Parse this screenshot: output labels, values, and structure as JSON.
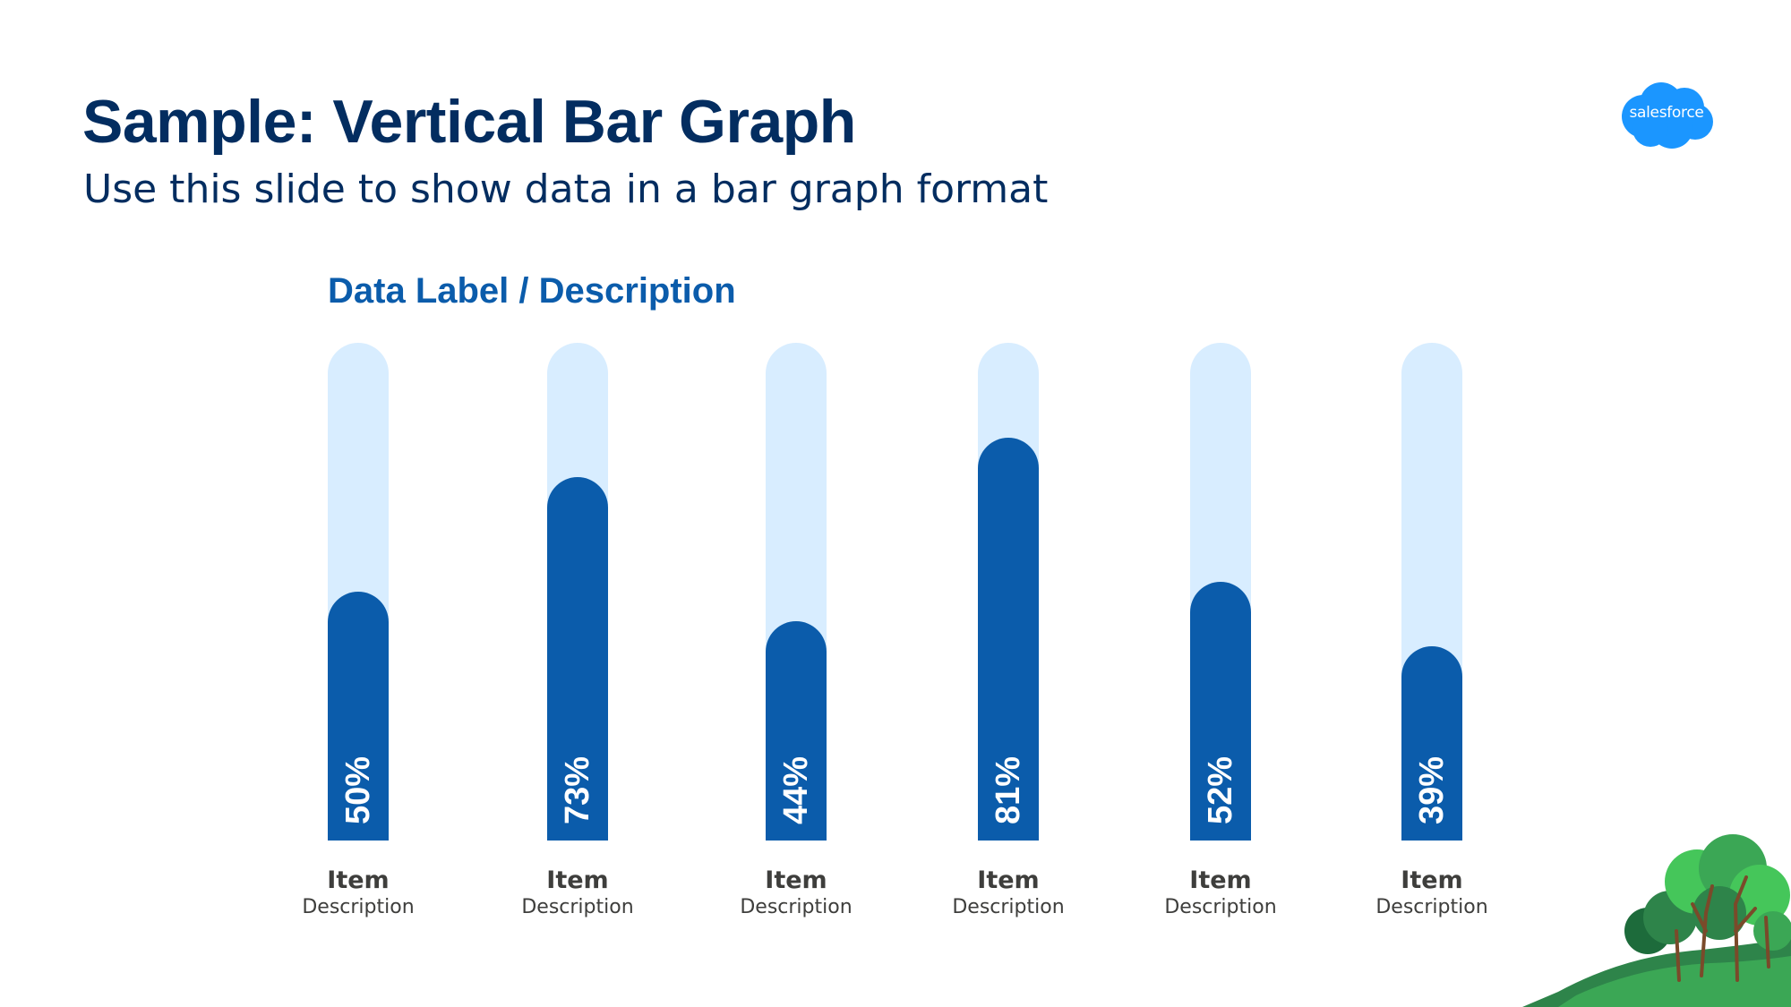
{
  "slide": {
    "title": "Sample: Vertical Bar Graph",
    "subtitle": "Use this slide to show data in a bar graph format",
    "logo_text": "salesforce"
  },
  "colors": {
    "title": "#032d60",
    "subtitle": "#032d60",
    "chart_label": "#0b5cab",
    "bar_fill": "#0b5cab",
    "bar_track": "#d8edff",
    "item_name": "#3e3e3c",
    "item_desc": "#3e3e3c",
    "logo": "#1b96ff"
  },
  "chart_data": {
    "type": "bar",
    "title": "Data Label / Description",
    "categories": [
      "Item",
      "Item",
      "Item",
      "Item",
      "Item",
      "Item"
    ],
    "descriptions": [
      "Description",
      "Description",
      "Description",
      "Description",
      "Description",
      "Description"
    ],
    "values": [
      50,
      73,
      44,
      81,
      52,
      39
    ],
    "value_labels": [
      "50%",
      "73%",
      "44%",
      "81%",
      "52%",
      "39%"
    ],
    "ylim": [
      0,
      100
    ],
    "unit": "%",
    "grid": false,
    "orientation": "vertical"
  }
}
